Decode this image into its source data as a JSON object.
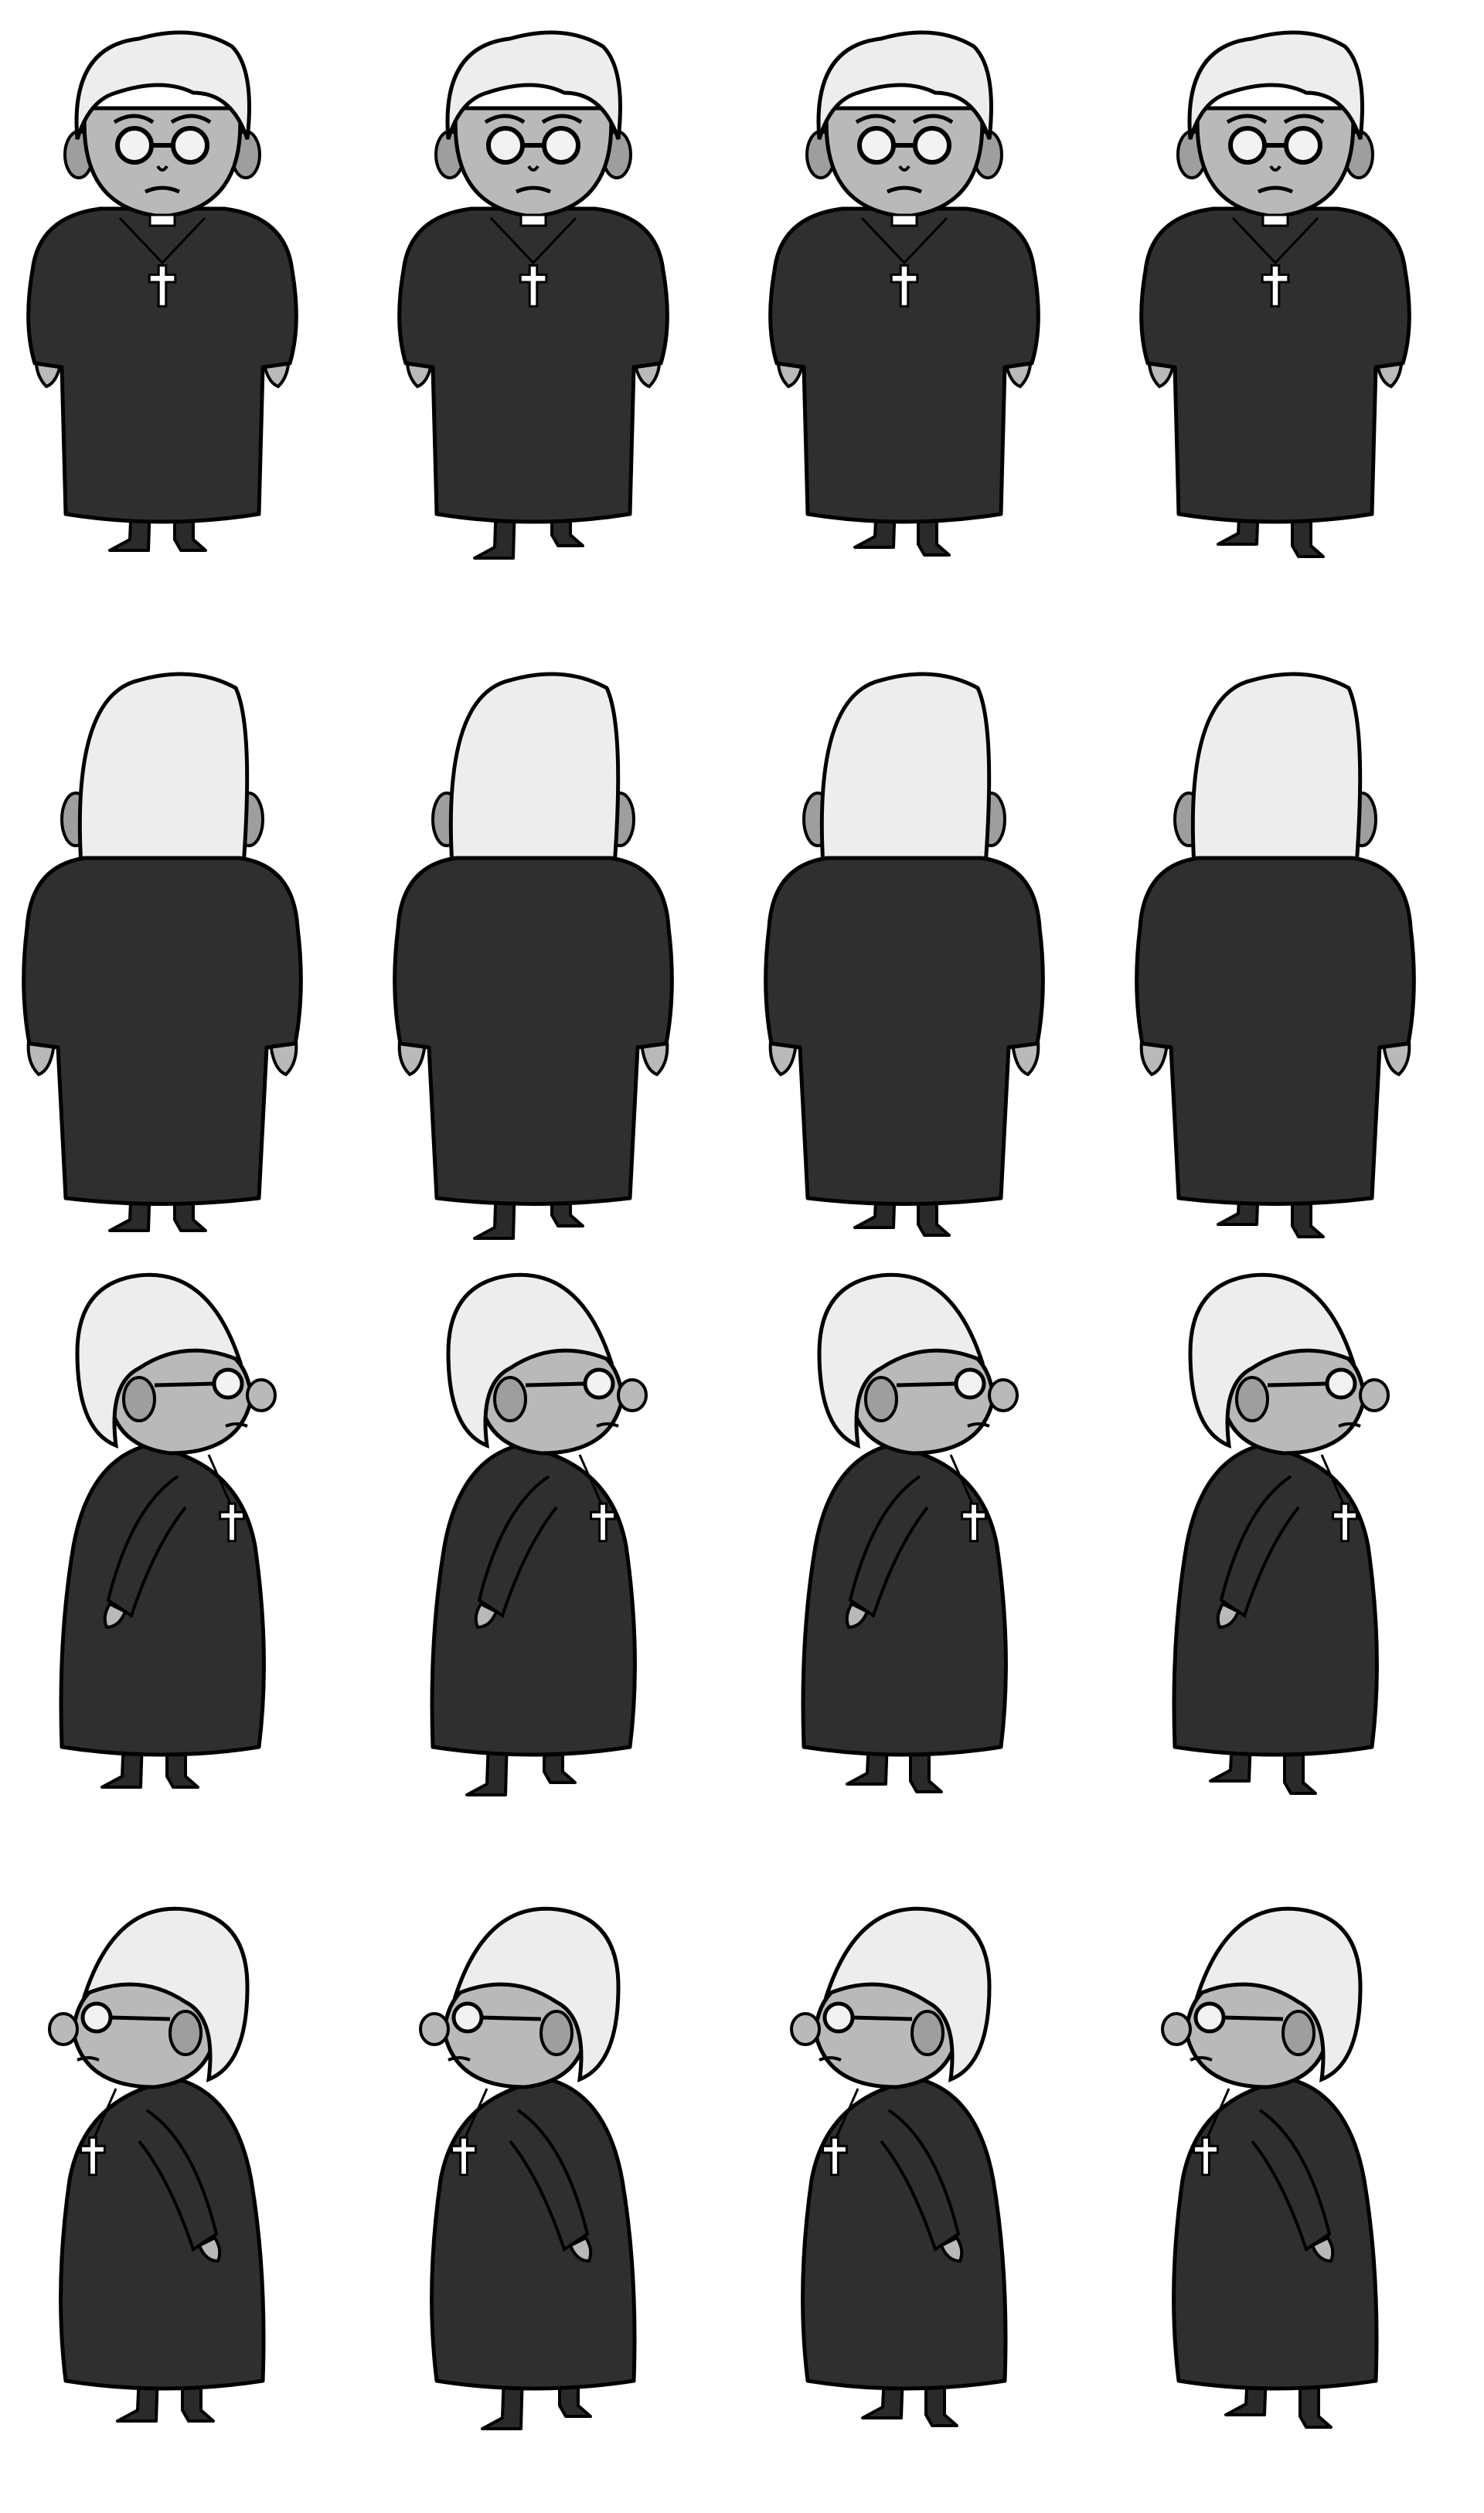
{
  "sprite_sheet": {
    "background": "#ffffff",
    "columns": 4,
    "rows": [
      {
        "direction": "front",
        "frames": [
          0,
          1,
          2,
          3
        ]
      },
      {
        "direction": "back",
        "frames": [
          0,
          1,
          2,
          3
        ]
      },
      {
        "direction": "left",
        "frames": [
          0,
          1,
          2,
          3
        ]
      },
      {
        "direction": "right",
        "frames": [
          0,
          1,
          2,
          3
        ]
      }
    ],
    "colors": {
      "robe": "#2f2f2f",
      "skin": "#b9b9b9",
      "skin_dark": "#9e9e9e",
      "hair": "#ededed",
      "outline": "#000000",
      "collar": "#ffffff",
      "cross": "#ffffff",
      "legs": "#2a2a2a"
    },
    "icons": [
      "cross-pendant-icon",
      "round-glasses-icon"
    ]
  }
}
